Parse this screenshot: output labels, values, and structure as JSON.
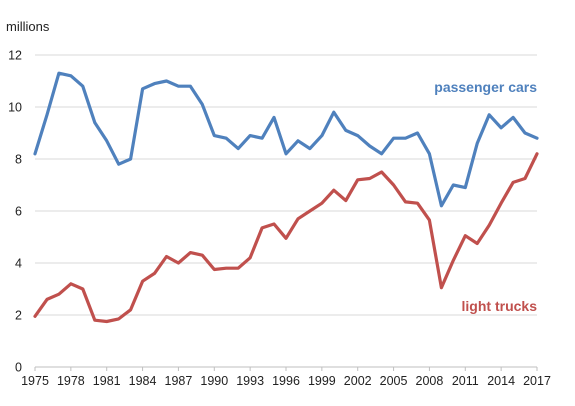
{
  "chart_data": {
    "type": "line",
    "unit_label": "millions",
    "x": [
      1975,
      1976,
      1977,
      1978,
      1979,
      1980,
      1981,
      1982,
      1983,
      1984,
      1985,
      1986,
      1987,
      1988,
      1989,
      1990,
      1991,
      1992,
      1993,
      1994,
      1995,
      1996,
      1997,
      1998,
      1999,
      2000,
      2001,
      2002,
      2003,
      2004,
      2005,
      2006,
      2007,
      2008,
      2009,
      2010,
      2011,
      2012,
      2013,
      2014,
      2015,
      2016,
      2017
    ],
    "x_tick_labels": [
      "1975",
      "1978",
      "1981",
      "1984",
      "1987",
      "1990",
      "1993",
      "1996",
      "1999",
      "2002",
      "2005",
      "2008",
      "2011",
      "2014",
      "2017"
    ],
    "y_tick_labels": [
      "0",
      "2",
      "4",
      "6",
      "8",
      "10",
      "12"
    ],
    "ylim": [
      0,
      12
    ],
    "grid": true,
    "series": [
      {
        "name": "passenger cars",
        "color": "#4f81bd",
        "values": [
          8.2,
          9.7,
          11.3,
          11.2,
          10.8,
          9.4,
          8.7,
          7.8,
          8.0,
          10.7,
          10.9,
          11.0,
          10.8,
          10.8,
          10.1,
          8.9,
          8.8,
          8.4,
          8.9,
          8.8,
          9.6,
          8.2,
          8.7,
          8.4,
          8.9,
          9.8,
          9.1,
          8.9,
          8.5,
          8.2,
          8.8,
          8.8,
          9.0,
          8.2,
          6.2,
          7.0,
          6.9,
          8.6,
          9.7,
          9.2,
          9.6,
          9.0,
          8.8
        ]
      },
      {
        "name": "light trucks",
        "color": "#c0504d",
        "values": [
          1.95,
          2.6,
          2.8,
          3.2,
          3.0,
          1.8,
          1.75,
          1.85,
          2.2,
          3.3,
          3.6,
          4.25,
          4.0,
          4.4,
          4.3,
          3.75,
          3.8,
          3.8,
          4.2,
          5.35,
          5.5,
          4.95,
          5.7,
          6.0,
          6.3,
          6.8,
          6.4,
          7.2,
          7.25,
          7.5,
          7.0,
          6.35,
          6.3,
          5.65,
          3.05,
          4.1,
          5.05,
          4.75,
          5.45,
          6.3,
          7.1,
          7.25,
          8.2
        ]
      }
    ]
  }
}
